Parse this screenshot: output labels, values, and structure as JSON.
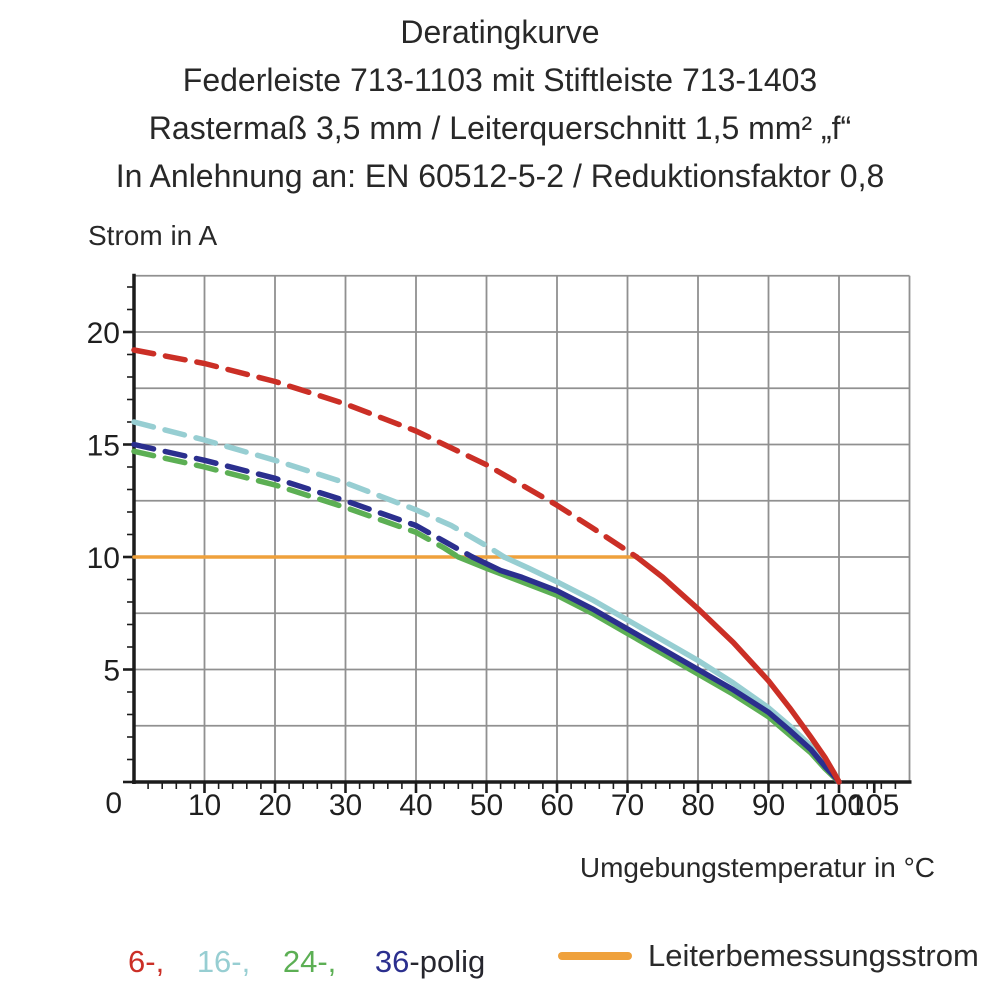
{
  "title": {
    "line1": "Deratingkurve",
    "line2": "Federleiste 713-1103 mit Stiftleiste 713-1403",
    "line3": "Rastermaß 3,5 mm / Leiterquerschnitt 1,5 mm² „f“",
    "line4": "In Anlehnung an: EN 60512-5-2 / Reduktionsfaktor 0,8"
  },
  "axes": {
    "y_label": "Strom in A",
    "x_label": "Umgebungstemperatur in °C"
  },
  "legend": {
    "pole_items": [
      {
        "label": "6-,",
        "color": "#cb2f26"
      },
      {
        "label": "16-,",
        "color": "#97ced2"
      },
      {
        "label": "24-,",
        "color": "#5caf54"
      },
      {
        "label": "36",
        "color": "#2b2f8e"
      }
    ],
    "pole_suffix": "-polig",
    "rated_current_label": "Leiterbemessungsstrom",
    "rated_current_color": "#efa13c"
  },
  "chart_data": {
    "type": "line",
    "title": "Deratingkurve",
    "xlabel": "Umgebungstemperatur in °C",
    "ylabel": "Strom in A",
    "xlim": [
      0,
      110
    ],
    "ylim": [
      0,
      22.5
    ],
    "x_grid_step": 10,
    "y_grid_step": 2.5,
    "x_minor_tick_step": 2,
    "y_minor_tick_step": 1,
    "x_major_ticks": [
      10,
      20,
      30,
      40,
      50,
      60,
      70,
      80,
      90,
      100,
      105
    ],
    "y_major_ticks": [
      0,
      5,
      10,
      15,
      20
    ],
    "grid_on": true,
    "grid_color": "#909090",
    "axis_color": "#1c1c1c",
    "legend_position": "bottom",
    "line_style_note": "dashed above rated current 10 A, solid below",
    "rated_current": {
      "name": "Leiterbemessungsstrom",
      "color": "#efa13c",
      "value": 10,
      "x_start": 0,
      "x_end": 71.3
    },
    "series": [
      {
        "name": "6-polig",
        "color": "#cb2f26",
        "z": 4,
        "dashed": [
          [
            0,
            19.2
          ],
          [
            10,
            18.6
          ],
          [
            20,
            17.8
          ],
          [
            30,
            16.8
          ],
          [
            40,
            15.6
          ],
          [
            50,
            14.1
          ],
          [
            55,
            13.2
          ],
          [
            60,
            12.3
          ],
          [
            65,
            11.3
          ],
          [
            71.3,
            10
          ]
        ],
        "solid": [
          [
            71.3,
            10
          ],
          [
            75,
            9.1
          ],
          [
            80,
            7.7
          ],
          [
            85,
            6.2
          ],
          [
            90,
            4.5
          ],
          [
            93,
            3.3
          ],
          [
            96,
            2.0
          ],
          [
            98,
            1.1
          ],
          [
            99.3,
            0.4
          ],
          [
            100,
            0
          ]
        ]
      },
      {
        "name": "16-polig",
        "color": "#97ced2",
        "z": 2,
        "dashed": [
          [
            0,
            16.0
          ],
          [
            10,
            15.2
          ],
          [
            20,
            14.3
          ],
          [
            30,
            13.3
          ],
          [
            40,
            12.1
          ],
          [
            45,
            11.4
          ],
          [
            50,
            10.5
          ],
          [
            52.5,
            10
          ]
        ],
        "solid": [
          [
            52.5,
            10
          ],
          [
            56,
            9.5
          ],
          [
            60,
            8.9
          ],
          [
            65,
            8.1
          ],
          [
            70,
            7.2
          ],
          [
            75,
            6.3
          ],
          [
            80,
            5.4
          ],
          [
            85,
            4.4
          ],
          [
            90,
            3.3
          ],
          [
            93,
            2.5
          ],
          [
            96,
            1.6
          ],
          [
            98,
            0.85
          ],
          [
            99.4,
            0.3
          ],
          [
            100,
            0
          ]
        ]
      },
      {
        "name": "24-polig",
        "color": "#5caf54",
        "z": 1,
        "dashed": [
          [
            0,
            14.7
          ],
          [
            10,
            14.0
          ],
          [
            20,
            13.2
          ],
          [
            30,
            12.2
          ],
          [
            40,
            11.1
          ],
          [
            44,
            10.4
          ],
          [
            46,
            10
          ]
        ],
        "solid": [
          [
            46,
            10
          ],
          [
            50,
            9.5
          ],
          [
            55,
            8.9
          ],
          [
            60,
            8.3
          ],
          [
            65,
            7.5
          ],
          [
            70,
            6.6
          ],
          [
            75,
            5.7
          ],
          [
            80,
            4.8
          ],
          [
            85,
            3.9
          ],
          [
            90,
            2.9
          ],
          [
            93,
            2.1
          ],
          [
            96,
            1.3
          ],
          [
            98,
            0.6
          ],
          [
            99.5,
            0.15
          ],
          [
            100,
            0
          ]
        ]
      },
      {
        "name": "36-polig",
        "color": "#2b2f8e",
        "z": 3,
        "dashed": [
          [
            0,
            15.0
          ],
          [
            10,
            14.3
          ],
          [
            20,
            13.5
          ],
          [
            30,
            12.5
          ],
          [
            40,
            11.4
          ],
          [
            44,
            10.7
          ],
          [
            48,
            10
          ]
        ],
        "solid": [
          [
            48,
            10
          ],
          [
            52,
            9.4
          ],
          [
            55,
            9.1
          ],
          [
            60,
            8.5
          ],
          [
            65,
            7.7
          ],
          [
            70,
            6.8
          ],
          [
            75,
            5.9
          ],
          [
            80,
            5.0
          ],
          [
            85,
            4.1
          ],
          [
            90,
            3.1
          ],
          [
            93,
            2.3
          ],
          [
            96,
            1.45
          ],
          [
            98,
            0.7
          ],
          [
            99.5,
            0.2
          ],
          [
            100,
            0
          ]
        ]
      }
    ]
  }
}
